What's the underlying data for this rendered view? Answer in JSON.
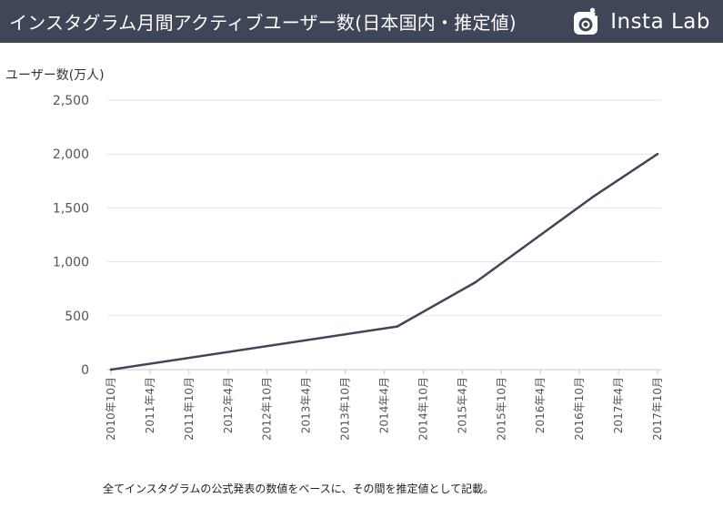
{
  "header": {
    "title": "インスタグラム月間アクティブユーザー数(日本国内・推定値)",
    "brand": "Insta Lab",
    "brand_icon": "camera-icon"
  },
  "footnote": "全てインスタグラムの公式発表の数値をベースに、その間を推定値として記載。",
  "colors": {
    "header_bg": "#3f4657",
    "line": "#3f4657",
    "grid": "#e3e3e3"
  },
  "chart_data": {
    "type": "line",
    "title": "",
    "xlabel": "",
    "ylabel": "ユーザー数(万人)",
    "categories": [
      "2010年10月",
      "2011年4月",
      "2011年10月",
      "2012年4月",
      "2012年10月",
      "2013年4月",
      "2013年10月",
      "2014年4月",
      "2014年10月",
      "2015年4月",
      "2015年10月",
      "2016年4月",
      "2016年10月",
      "2017年4月",
      "2017年10月"
    ],
    "yticks": [
      "0",
      "500",
      "1,000",
      "1,500",
      "2,000",
      "2,500"
    ],
    "ylim": [
      0,
      2500
    ],
    "grid": true,
    "series": [
      {
        "points": [
          {
            "x": "2010-10",
            "y": 0
          },
          {
            "x": "2014-06",
            "y": 400
          },
          {
            "x": "2015-06",
            "y": 810
          },
          {
            "x": "2016-12",
            "y": 1600
          },
          {
            "x": "2017-10",
            "y": 2000
          }
        ]
      }
    ]
  }
}
